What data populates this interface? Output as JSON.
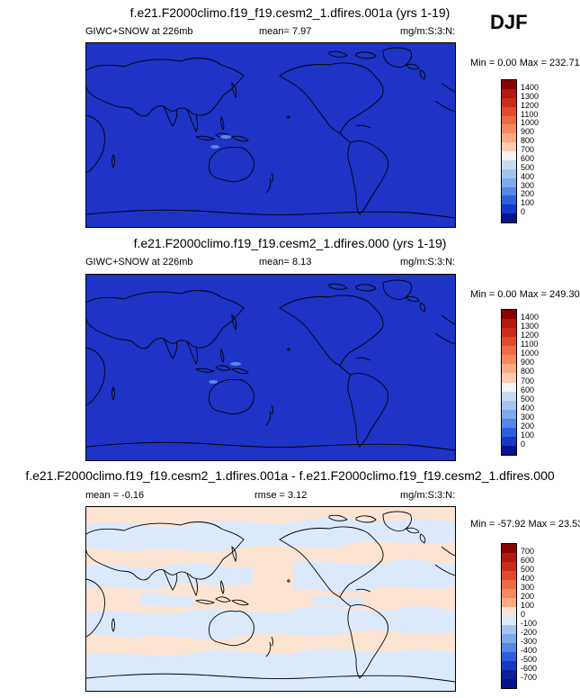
{
  "season": "DJF",
  "panels": [
    {
      "title": "f.e21.F2000climo.f19_f19.cesm2_1.dfires.001a (yrs 1-19)",
      "left_label": "GIWC+SNOW at 226mb",
      "mid_label": "mean=  7.97",
      "units": "mg/m:S:3:N:",
      "minmax": "Min =   0.00 Max = 232.71",
      "colorbar": {
        "labels": [
          "1400",
          "1300",
          "1200",
          "1100",
          "1000",
          "900",
          "800",
          "700",
          "600",
          "500",
          "400",
          "300",
          "200",
          "100",
          "0"
        ],
        "colors": [
          "#8b0000",
          "#b2180f",
          "#cd2a1c",
          "#e04b2e",
          "#ee6a45",
          "#f6895f",
          "#fbaa84",
          "#fdcbb0",
          "#f4f4f4",
          "#c6dbef",
          "#a3c4ee",
          "#7ea9eb",
          "#5686e6",
          "#2f5fdc",
          "#1637c8",
          "#06128e"
        ]
      }
    },
    {
      "title": "f.e21.F2000climo.f19_f19.cesm2_1.dfires.000 (yrs 1-19)",
      "left_label": "GIWC+SNOW at 226mb",
      "mid_label": "mean=  8.13",
      "units": "mg/m:S:3:N:",
      "minmax": "Min =   0.00 Max = 249.30",
      "colorbar": {
        "labels": [
          "1400",
          "1300",
          "1200",
          "1100",
          "1000",
          "900",
          "800",
          "700",
          "600",
          "500",
          "400",
          "300",
          "200",
          "100",
          "0"
        ],
        "colors": [
          "#8b0000",
          "#b2180f",
          "#cd2a1c",
          "#e04b2e",
          "#ee6a45",
          "#f6895f",
          "#fbaa84",
          "#fdcbb0",
          "#f4f4f4",
          "#c6dbef",
          "#a3c4ee",
          "#7ea9eb",
          "#5686e6",
          "#2f5fdc",
          "#1637c8",
          "#06128e"
        ]
      }
    },
    {
      "title": "f.e21.F2000climo.f19_f19.cesm2_1.dfires.001a - f.e21.F2000climo.f19_f19.cesm2_1.dfires.000",
      "left_label": "mean =  -0.16",
      "mid_label": "rmse =  3.12",
      "units": "mg/m:S:3:N:",
      "minmax": "Min = -57.92 Max =  23.53",
      "colorbar": {
        "labels": [
          "700",
          "600",
          "500",
          "400",
          "300",
          "200",
          "100",
          "0",
          "-100",
          "-200",
          "-300",
          "-400",
          "-500",
          "-600",
          "-700"
        ],
        "colors": [
          "#8b0000",
          "#b2180f",
          "#cd2a1c",
          "#e04b2e",
          "#ee6a45",
          "#f6895f",
          "#fbaa84",
          "#fde4d2",
          "#dbe9fb",
          "#a3c4ee",
          "#7ea9eb",
          "#5686e6",
          "#2f5fdc",
          "#1637c8",
          "#0a1f9e",
          "#06128e"
        ]
      }
    }
  ],
  "chart_data": [
    {
      "type": "heatmap",
      "title": "f.e21.F2000climo.f19_f19.cesm2_1.dfires.001a (yrs 1-19)",
      "variable": "GIWC+SNOW at 226mb",
      "mean": 7.97,
      "min": 0.0,
      "max": 232.71,
      "levels": [
        0,
        100,
        200,
        300,
        400,
        500,
        600,
        700,
        800,
        900,
        1000,
        1100,
        1200,
        1300,
        1400
      ]
    },
    {
      "type": "heatmap",
      "title": "f.e21.F2000climo.f19_f19.cesm2_1.dfires.000 (yrs 1-19)",
      "variable": "GIWC+SNOW at 226mb",
      "mean": 8.13,
      "min": 0.0,
      "max": 249.3,
      "levels": [
        0,
        100,
        200,
        300,
        400,
        500,
        600,
        700,
        800,
        900,
        1000,
        1100,
        1200,
        1300,
        1400
      ]
    },
    {
      "type": "heatmap",
      "title": "f.e21.F2000climo.f19_f19.cesm2_1.dfires.001a - f.e21.F2000climo.f19_f19.cesm2_1.dfires.000",
      "mean": -0.16,
      "rmse": 3.12,
      "min": -57.92,
      "max": 23.53,
      "levels": [
        -700,
        -600,
        -500,
        -400,
        -300,
        -200,
        -100,
        0,
        100,
        200,
        300,
        400,
        500,
        600,
        700
      ]
    }
  ]
}
